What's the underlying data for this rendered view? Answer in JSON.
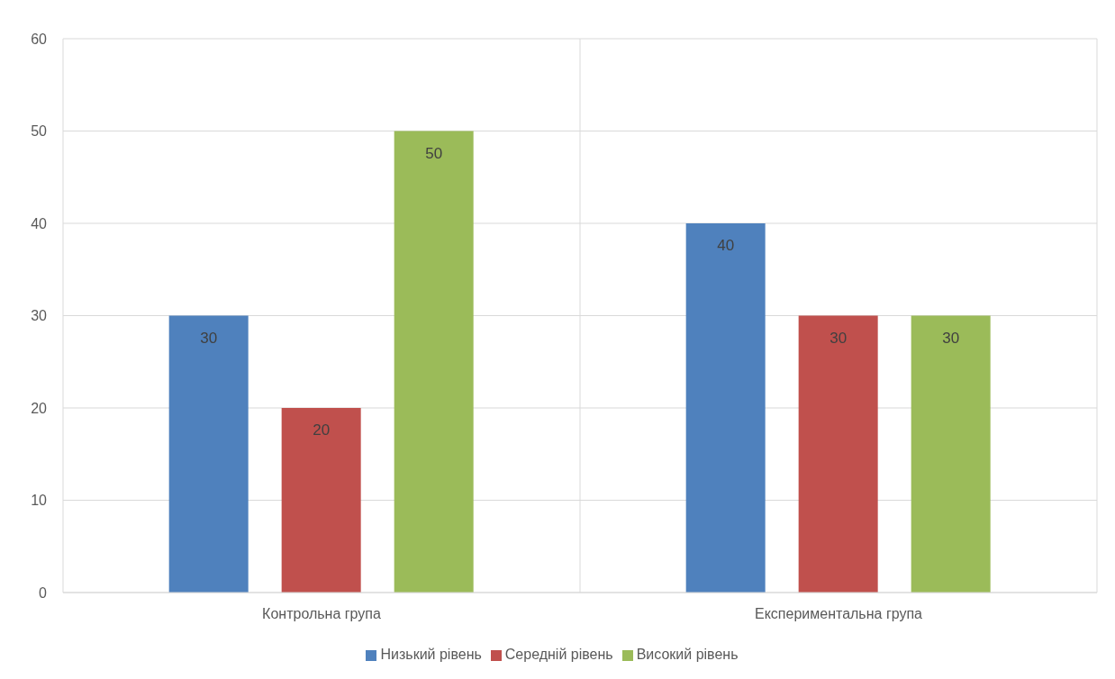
{
  "chart_data": {
    "type": "bar",
    "categories": [
      "Контрольна група",
      "Експериментальна група"
    ],
    "series": [
      {
        "name": "Низький рівень",
        "color": "#4f81bd",
        "values": [
          30,
          40
        ]
      },
      {
        "name": "Середній рівень",
        "color": "#c0504d",
        "values": [
          20,
          30
        ]
      },
      {
        "name": "Високий рівень",
        "color": "#9bbb59",
        "values": [
          50,
          30
        ]
      }
    ],
    "ylim": [
      0,
      60
    ],
    "yticks": [
      0,
      10,
      20,
      30,
      40,
      50,
      60
    ],
    "grid": true,
    "legend": "bottom",
    "data_labels": true
  }
}
